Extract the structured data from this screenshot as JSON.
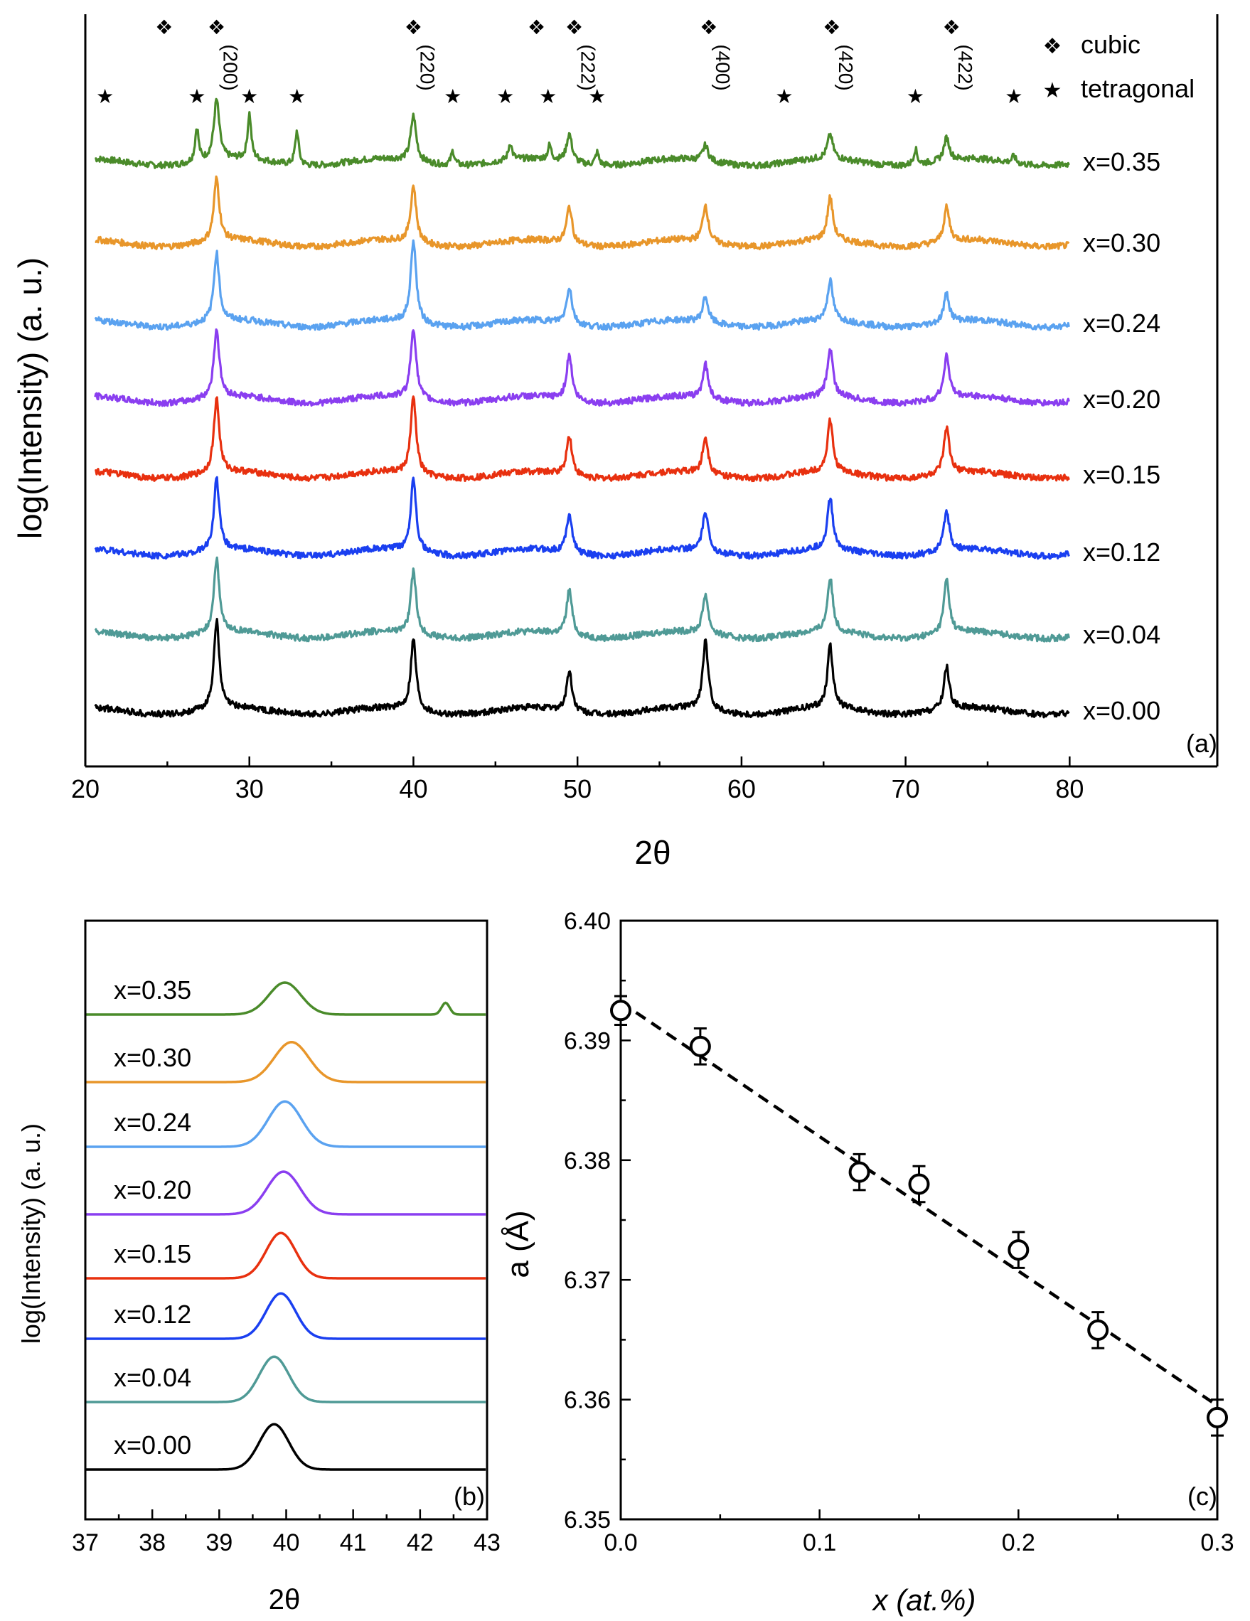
{
  "chart_data": [
    {
      "panel": "(a)",
      "type": "line",
      "title": "",
      "xlabel": "2θ",
      "ylabel": "log(Intensity) (a. u.)",
      "xlim": [
        20,
        89
      ],
      "xticks": [
        20,
        30,
        40,
        50,
        60,
        70,
        80
      ],
      "yticks_shown": false,
      "peaks_2theta": [
        28.0,
        40.0,
        49.5,
        57.8,
        65.4,
        72.5
      ],
      "tetragonal_peaks_2theta": [
        26.8,
        30.0,
        32.9,
        42.4,
        45.9,
        48.3,
        51.2,
        70.6,
        76.6
      ],
      "series": [
        {
          "name": "x=0.35",
          "color": "#4a8b2a",
          "offset": 7,
          "peak_heights": [
            2.1,
            1.6,
            1.0,
            0.55,
            0.85,
            0.8
          ],
          "tetragonal_heights": [
            1.2,
            1.6,
            1.2,
            0.5,
            0.6,
            0.5,
            0.45,
            0.55,
            0.25
          ]
        },
        {
          "name": "x=0.30",
          "color": "#e8962a",
          "offset": 6,
          "peak_heights": [
            2.2,
            2.0,
            1.3,
            1.3,
            1.5,
            1.2
          ]
        },
        {
          "name": "x=0.24",
          "color": "#5aa2f0",
          "offset": 5,
          "peak_heights": [
            2.4,
            2.9,
            1.3,
            0.9,
            1.4,
            1.0
          ]
        },
        {
          "name": "x=0.20",
          "color": "#8a3ef0",
          "offset": 4,
          "peak_heights": [
            2.4,
            2.5,
            1.6,
            1.2,
            1.7,
            1.5
          ]
        },
        {
          "name": "x=0.15",
          "color": "#e8300f",
          "offset": 3,
          "peak_heights": [
            2.6,
            2.7,
            1.4,
            1.3,
            1.8,
            1.6
          ]
        },
        {
          "name": "x=0.12",
          "color": "#1a3ff0",
          "offset": 2,
          "peak_heights": [
            2.5,
            2.6,
            1.4,
            1.4,
            1.8,
            1.4
          ]
        },
        {
          "name": "x=0.04",
          "color": "#4f9a96",
          "offset": 1,
          "peak_heights": [
            2.6,
            2.2,
            1.6,
            1.4,
            1.9,
            1.9
          ]
        },
        {
          "name": "x=0.00",
          "color": "#000000",
          "offset": 0,
          "peak_heights": [
            3.1,
            2.5,
            1.4,
            2.4,
            2.2,
            1.5
          ]
        }
      ],
      "annotations": {
        "hkl": [
          {
            "label": "(200)",
            "x": 28.0
          },
          {
            "label": "(220)",
            "x": 40.0
          },
          {
            "label": "(222)",
            "x": 49.8
          },
          {
            "label": "(400)",
            "x": 58.0
          },
          {
            "label": "(420)",
            "x": 65.5
          },
          {
            "label": "(422)",
            "x": 72.8
          }
        ],
        "cubic_markers_x": [
          24.8,
          28.0,
          40.0,
          47.5,
          49.8,
          58.0,
          65.5,
          72.8
        ],
        "tetragonal_markers_x": [
          21.2,
          26.8,
          30.0,
          32.9,
          42.4,
          45.6,
          48.2,
          51.2,
          62.6,
          70.6,
          76.6
        ],
        "legend": [
          {
            "symbol": "❖",
            "label": "cubic"
          },
          {
            "symbol": "★",
            "label": "tetragonal"
          }
        ],
        "legend_position": "top-right",
        "panel_label": "(a)"
      }
    },
    {
      "panel": "(b)",
      "type": "line",
      "xlabel": "2θ",
      "ylabel": "log(Intensity) (a. u.)",
      "xlim": [
        37,
        43
      ],
      "xticks": [
        37,
        38,
        39,
        40,
        41,
        42,
        43
      ],
      "series": [
        {
          "name": "x=0.35",
          "color": "#4a8b2a",
          "offset": 7,
          "center": 39.98,
          "height": 0.6,
          "width": 0.24,
          "extra_peak": {
            "center": 42.38,
            "height": 0.22,
            "width": 0.06
          }
        },
        {
          "name": "x=0.30",
          "color": "#e8962a",
          "offset": 6,
          "center": 40.08,
          "height": 0.75,
          "width": 0.26
        },
        {
          "name": "x=0.24",
          "color": "#5aa2f0",
          "offset": 5,
          "center": 39.98,
          "height": 0.85,
          "width": 0.25
        },
        {
          "name": "x=0.20",
          "color": "#8a3ef0",
          "offset": 4,
          "center": 39.96,
          "height": 0.8,
          "width": 0.25
        },
        {
          "name": "x=0.15",
          "color": "#e8300f",
          "offset": 3,
          "center": 39.92,
          "height": 0.85,
          "width": 0.22
        },
        {
          "name": "x=0.12",
          "color": "#1a3ff0",
          "offset": 2,
          "center": 39.92,
          "height": 0.85,
          "width": 0.22
        },
        {
          "name": "x=0.04",
          "color": "#4f9a96",
          "offset": 1,
          "center": 39.82,
          "height": 0.85,
          "width": 0.22
        },
        {
          "name": "x=0.00",
          "color": "#000000",
          "offset": 0,
          "center": 39.82,
          "height": 0.85,
          "width": 0.22
        }
      ],
      "annotations": {
        "panel_label": "(b)"
      }
    },
    {
      "panel": "(c)",
      "type": "scatter",
      "xlabel": "x (at.%)",
      "ylabel": "a (Å)",
      "xlim": [
        0.0,
        0.3
      ],
      "ylim": [
        6.35,
        6.4
      ],
      "xticks": [
        "0.0",
        "0.1",
        "0.2",
        "0.3"
      ],
      "yticks": [
        "6.35",
        "6.36",
        "6.37",
        "6.38",
        "6.39",
        "6.40"
      ],
      "x": [
        0.0,
        0.04,
        0.12,
        0.15,
        0.2,
        0.24,
        0.3
      ],
      "y": [
        6.3925,
        6.3895,
        6.379,
        6.378,
        6.3725,
        6.3658,
        6.3585
      ],
      "yerr": [
        0.0012,
        0.0015,
        0.0015,
        0.0015,
        0.0015,
        0.0015,
        0.0015
      ],
      "fit_line": {
        "x": [
          0.0,
          0.3
        ],
        "y": [
          6.3932,
          6.3595
        ],
        "style": "dashed"
      },
      "annotations": {
        "panel_label": "(c)"
      }
    }
  ]
}
